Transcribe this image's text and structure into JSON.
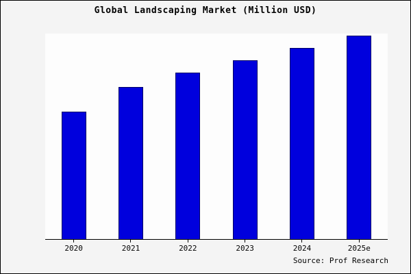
{
  "chart_data": {
    "type": "bar",
    "title": "Global Landscaping Market (Million USD)",
    "categories": [
      "2020",
      "2021",
      "2022",
      "2023",
      "2024",
      "2025e"
    ],
    "values": [
      620,
      740,
      810,
      870,
      930,
      990
    ],
    "xlabel": "",
    "ylabel": "",
    "ylim": [
      0,
      1000
    ],
    "grid": false,
    "legend": false,
    "bar_color": "#0000dd",
    "bar_edge_color": "#000066",
    "figure_background": "#f4f4f4",
    "plot_background": "#fdfdfd"
  },
  "source": {
    "label": "Source: Prof Research"
  }
}
